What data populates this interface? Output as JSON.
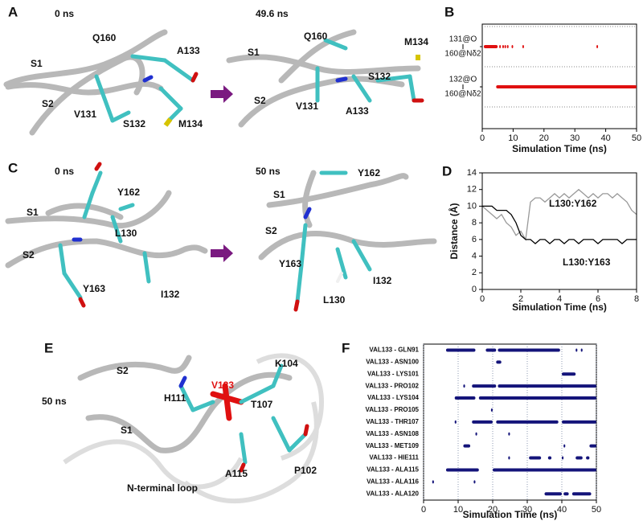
{
  "panel_labels": [
    "A",
    "B",
    "C",
    "D",
    "E",
    "F"
  ],
  "panel_a": {
    "left_time": "0 ns",
    "right_time": "49.6 ns",
    "left_labels": [
      "Q160",
      "A133",
      "S1",
      "S2",
      "V131",
      "S132",
      "M134"
    ],
    "right_labels": [
      "Q160",
      "M134",
      "S1",
      "S132",
      "S2",
      "V131",
      "A133"
    ]
  },
  "panel_c": {
    "left_time": "0 ns",
    "right_time": "50 ns",
    "left_labels": [
      "Y162",
      "S1",
      "L130",
      "S2",
      "Y163",
      "I132"
    ],
    "right_labels": [
      "Y162",
      "S1",
      "S2",
      "Y163",
      "I132",
      "L130"
    ]
  },
  "panel_e": {
    "time": "50 ns",
    "labels": [
      "S2",
      "K104",
      "V133",
      "H111",
      "T107",
      "S1",
      "A115",
      "P102",
      "N-terminal loop"
    ]
  },
  "chart_data": [
    {
      "type": "timeline",
      "xlabel": "Simulation Time (ns)",
      "color": "#e01010",
      "categories": [
        [
          "131@O",
          "160@Nδ2"
        ],
        [
          "132@O",
          "160@Nδ2"
        ]
      ],
      "intervals": [
        [
          [
            0.5,
            5
          ],
          [
            5.5,
            5.8
          ],
          [
            6.5,
            6.8
          ],
          [
            7.2,
            7.5
          ],
          [
            8,
            8.3
          ],
          [
            9.5,
            9.8
          ],
          [
            13,
            13.3
          ],
          [
            37,
            37.3
          ]
        ],
        [
          [
            4.5,
            50
          ]
        ]
      ],
      "xlim": [
        0,
        50
      ],
      "xticks": [
        0,
        10,
        20,
        30,
        40,
        50
      ],
      "grid": false
    },
    {
      "type": "line",
      "xlabel": "Simulation Time (ns)",
      "ylabel": "Distance (Å)",
      "x": [
        0,
        0.25,
        0.5,
        0.75,
        1,
        1.25,
        1.5,
        1.75,
        2,
        2.25,
        2.5,
        2.75,
        3,
        3.25,
        3.5,
        3.75,
        4,
        4.25,
        4.5,
        4.75,
        5,
        5.25,
        5.5,
        5.75,
        6,
        6.25,
        6.5,
        6.75,
        7,
        7.25,
        7.5,
        7.75,
        8
      ],
      "series": [
        {
          "name": "L130:Y162",
          "color": "#999999",
          "values": [
            10,
            9.5,
            9,
            8.5,
            9,
            8,
            7.5,
            6.5,
            7,
            6,
            10.5,
            11,
            11,
            10.5,
            11,
            11.5,
            11,
            11.5,
            11,
            11.5,
            12,
            11.5,
            11,
            11.5,
            11,
            11.5,
            11.5,
            11,
            11.5,
            11,
            10.5,
            9.5,
            9
          ]
        },
        {
          "name": "L130:Y163",
          "color": "#000000",
          "values": [
            10,
            10,
            10,
            9.5,
            9.5,
            9.5,
            9,
            8,
            6.5,
            6,
            6,
            5.5,
            6,
            6,
            5.5,
            6,
            6,
            5.5,
            6,
            6,
            5.5,
            6,
            6,
            6,
            5.5,
            6,
            6,
            6,
            6,
            5.5,
            6,
            6,
            6
          ]
        }
      ],
      "xlim": [
        0,
        8
      ],
      "xticks": [
        0,
        2,
        4,
        6,
        8
      ],
      "ylim": [
        0,
        14
      ],
      "yticks": [
        0,
        2,
        4,
        6,
        8,
        10,
        12,
        14
      ]
    },
    {
      "type": "timeline",
      "xlabel": "Simulation Time (ns)",
      "color": "#14147a",
      "categories": [
        "VAL133 - GLN91",
        "VAL133 - ASN100",
        "VAL133 - LYS101",
        "VAL133 - PRO102",
        "VAL133 - LYS104",
        "VAL133 - PRO105",
        "VAL133 - THR107",
        "VAL133 - ASN108",
        "VAL133 - MET109",
        "VAL133 - HIE111",
        "VAL133 - ALA115",
        "VAL133 - ALA116",
        "VAL133 - ALA120"
      ],
      "intervals": [
        [
          [
            6.5,
            15
          ],
          [
            18,
            21
          ],
          [
            21.5,
            39.5
          ],
          [
            44,
            44.5
          ],
          [
            45.5,
            46
          ]
        ],
        [
          [
            21,
            22.5
          ]
        ],
        [
          [
            40,
            44
          ]
        ],
        [
          [
            11.5,
            12
          ],
          [
            14,
            21
          ],
          [
            21.5,
            50
          ]
        ],
        [
          [
            9,
            15
          ],
          [
            16,
            50
          ]
        ],
        [
          [
            19.5,
            20
          ]
        ],
        [
          [
            9,
            9.5
          ],
          [
            14,
            20
          ],
          [
            21,
            39
          ],
          [
            40,
            50
          ]
        ],
        [
          [
            15,
            15.5
          ],
          [
            24.5,
            25
          ]
        ],
        [
          [
            11.5,
            13.5
          ],
          [
            40.5,
            41
          ],
          [
            48,
            50
          ]
        ],
        [
          [
            24.5,
            25
          ],
          [
            30.5,
            34
          ],
          [
            36,
            37
          ],
          [
            40,
            40.5
          ],
          [
            44,
            46
          ],
          [
            47,
            48
          ]
        ],
        [
          [
            6.5,
            16
          ],
          [
            20,
            50
          ]
        ],
        [
          [
            2.5,
            3
          ],
          [
            14.5,
            15
          ]
        ],
        [
          [
            35,
            40
          ],
          [
            40.5,
            42
          ],
          [
            43,
            48.5
          ]
        ]
      ],
      "xlim": [
        0,
        50
      ],
      "xticks": [
        0,
        10,
        20,
        30,
        40,
        50
      ],
      "grid": true
    }
  ]
}
